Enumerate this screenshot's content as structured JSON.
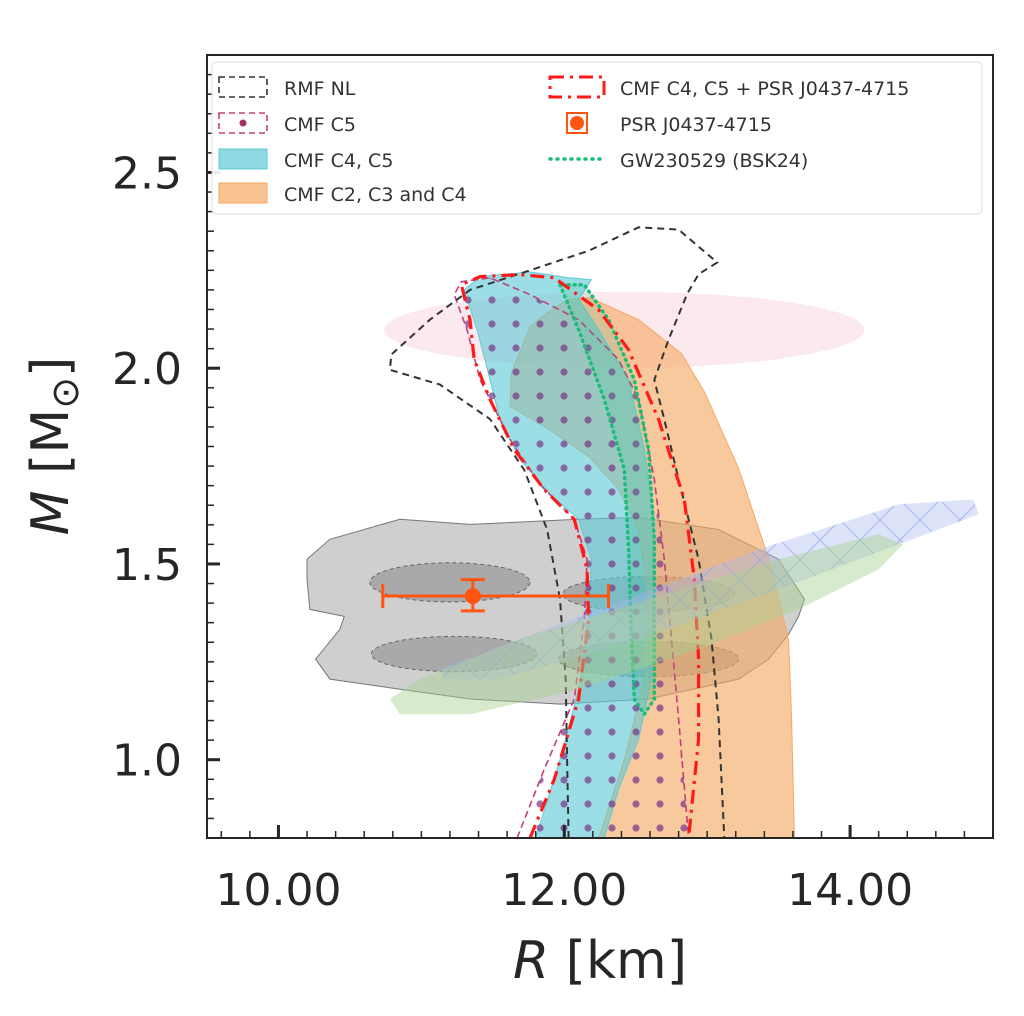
{
  "chart_data": {
    "type": "contour-region",
    "xlabel_italic": "R",
    "xlabel_unit": " [km]",
    "ylabel_italic": "M",
    "ylabel_unit": " [M",
    "ylabel_sub": "⊙",
    "ylabel_close": "]",
    "xlim": [
      9.5,
      15.0
    ],
    "ylim": [
      0.8,
      2.8
    ],
    "xticks": [
      {
        "v": 10,
        "label": "10.00"
      },
      {
        "v": 12,
        "label": "12.00"
      },
      {
        "v": 14,
        "label": "14.00"
      }
    ],
    "yticks": [
      {
        "v": 1.0,
        "label": "1.0"
      },
      {
        "v": 1.5,
        "label": "1.5"
      },
      {
        "v": 2.0,
        "label": "2.0"
      },
      {
        "v": 2.5,
        "label": "2.5"
      }
    ],
    "x_minor_step": 0.2,
    "y_minor_step": 0.05,
    "legend": {
      "placement": "top",
      "left": [
        {
          "label": "RMF NL",
          "style": "dashed",
          "color": "#333333"
        },
        {
          "label": "CMF C5",
          "style": "dashed-dots",
          "color": "#c0407a"
        },
        {
          "label": "CMF C4, C5",
          "style": "fill",
          "color": "#5fcad6"
        },
        {
          "label": "CMF C2, C3 and C4",
          "style": "fill",
          "color": "#f6a862"
        }
      ],
      "right": [
        {
          "label": "CMF C4, C5 + PSR J0437-4715",
          "style": "dashdot",
          "color": "#ff1a1a"
        },
        {
          "label": "PSR J0437-4715",
          "style": "errorbar",
          "color": "#ff5511"
        },
        {
          "label": "GW230529 (BSK24)",
          "style": "dotted",
          "color": "#1abc7a"
        }
      ]
    },
    "background_regions": {
      "pink_ellipse": {
        "center": [
          12.42,
          2.098
        ],
        "half_width": 1.68,
        "half_height": 0.097,
        "color": "#f4c0cf"
      },
      "blue_hatched": {
        "color": "#a9b9ef",
        "points": [
          [
            11.13,
            1.231
          ],
          [
            12.24,
            1.384
          ],
          [
            13.36,
            1.537
          ],
          [
            14.34,
            1.652
          ],
          [
            14.86,
            1.665
          ],
          [
            14.9,
            1.627
          ],
          [
            14.34,
            1.55
          ],
          [
            13.5,
            1.435
          ],
          [
            12.52,
            1.308
          ],
          [
            11.55,
            1.206
          ],
          [
            11.16,
            1.206
          ]
        ]
      },
      "green_band": {
        "color": "#a8d08d",
        "points": [
          [
            10.78,
            1.155
          ],
          [
            10.99,
            1.206
          ],
          [
            11.69,
            1.308
          ],
          [
            12.59,
            1.41
          ],
          [
            13.5,
            1.512
          ],
          [
            14.2,
            1.576
          ],
          [
            14.37,
            1.55
          ],
          [
            14.2,
            1.486
          ],
          [
            13.64,
            1.384
          ],
          [
            12.94,
            1.282
          ],
          [
            12.1,
            1.18
          ],
          [
            11.34,
            1.116
          ],
          [
            10.85,
            1.116
          ]
        ]
      },
      "gray_outer": {
        "color": "#8c8c8c",
        "points": [
          [
            10.2,
            1.512
          ],
          [
            10.36,
            1.563
          ],
          [
            10.85,
            1.614
          ],
          [
            11.34,
            1.601
          ],
          [
            12.1,
            1.614
          ],
          [
            12.52,
            1.619
          ],
          [
            13.08,
            1.588
          ],
          [
            13.5,
            1.512
          ],
          [
            13.68,
            1.41
          ],
          [
            13.64,
            1.366
          ],
          [
            13.57,
            1.32
          ],
          [
            13.43,
            1.257
          ],
          [
            13.22,
            1.206
          ],
          [
            12.59,
            1.155
          ],
          [
            11.97,
            1.142
          ],
          [
            11.34,
            1.155
          ],
          [
            10.85,
            1.18
          ],
          [
            10.36,
            1.206
          ],
          [
            10.26,
            1.257
          ],
          [
            10.43,
            1.333
          ],
          [
            10.46,
            1.366
          ],
          [
            10.22,
            1.384
          ],
          [
            10.2,
            1.461
          ]
        ]
      },
      "gray_inner": [
        {
          "center": [
            11.2,
            1.453
          ],
          "half_width": 0.56,
          "half_height": 0.05
        },
        {
          "center": [
            11.23,
            1.27
          ],
          "half_width": 0.58,
          "half_height": 0.045
        },
        {
          "center": [
            12.59,
            1.423
          ],
          "half_width": 0.6,
          "half_height": 0.045
        },
        {
          "center": [
            12.59,
            1.257
          ],
          "half_width": 0.63,
          "half_height": 0.045
        }
      ]
    },
    "series": [
      {
        "name": "CMF C2, C3 and C4",
        "kind": "fill",
        "color": "#f6a862",
        "points": [
          [
            12.24,
            0.8
          ],
          [
            12.42,
            1.0
          ],
          [
            12.56,
            1.206
          ],
          [
            12.59,
            1.41
          ],
          [
            12.52,
            1.588
          ],
          [
            12.38,
            1.69
          ],
          [
            12.17,
            1.775
          ],
          [
            11.86,
            1.851
          ],
          [
            11.62,
            1.902
          ],
          [
            11.63,
            1.989
          ],
          [
            11.76,
            2.106
          ],
          [
            11.89,
            2.144
          ],
          [
            12.02,
            2.175
          ],
          [
            12.18,
            2.18
          ],
          [
            12.52,
            2.124
          ],
          [
            12.82,
            2.037
          ],
          [
            12.98,
            1.94
          ],
          [
            13.22,
            1.744
          ],
          [
            13.44,
            1.502
          ],
          [
            13.57,
            1.305
          ],
          [
            13.59,
            1.111
          ],
          [
            13.61,
            0.8
          ]
        ]
      },
      {
        "name": "CMF C4, C5",
        "kind": "fill",
        "color": "#5fcad6",
        "points": [
          [
            11.8,
            0.8
          ],
          [
            11.97,
            1.0
          ],
          [
            12.1,
            1.18
          ],
          [
            12.17,
            1.359
          ],
          [
            12.19,
            1.512
          ],
          [
            12.1,
            1.614
          ],
          [
            11.9,
            1.678
          ],
          [
            11.69,
            1.767
          ],
          [
            11.55,
            1.869
          ],
          [
            11.48,
            1.971
          ],
          [
            11.39,
            2.098
          ],
          [
            11.3,
            2.2
          ],
          [
            11.41,
            2.234
          ],
          [
            11.76,
            2.246
          ],
          [
            12.03,
            2.231
          ],
          [
            12.19,
            2.226
          ],
          [
            12.1,
            2.175
          ],
          [
            12.24,
            2.098
          ],
          [
            12.45,
            1.971
          ],
          [
            12.56,
            1.792
          ],
          [
            12.63,
            1.614
          ],
          [
            12.63,
            1.41
          ],
          [
            12.61,
            1.206
          ],
          [
            12.52,
            1.053
          ],
          [
            12.38,
            0.925
          ],
          [
            12.28,
            0.8
          ]
        ]
      },
      {
        "name": "CMF C5",
        "kind": "dashed-dots",
        "color": "#c0407a",
        "points": [
          [
            11.67,
            0.8
          ],
          [
            11.86,
            0.976
          ],
          [
            12.07,
            1.155
          ],
          [
            12.14,
            1.359
          ],
          [
            12.16,
            1.512
          ],
          [
            12.07,
            1.614
          ],
          [
            11.83,
            1.703
          ],
          [
            11.62,
            1.818
          ],
          [
            11.41,
            1.971
          ],
          [
            11.32,
            2.098
          ],
          [
            11.23,
            2.188
          ],
          [
            11.28,
            2.221
          ],
          [
            11.48,
            2.231
          ],
          [
            11.76,
            2.188
          ],
          [
            12.1,
            2.124
          ],
          [
            12.38,
            2.022
          ],
          [
            12.52,
            1.92
          ],
          [
            12.63,
            1.716
          ],
          [
            12.7,
            1.512
          ],
          [
            12.75,
            1.308
          ],
          [
            12.8,
            1.104
          ],
          [
            12.87,
            0.8
          ]
        ]
      },
      {
        "name": "RMF NL",
        "kind": "dashed",
        "color": "#333333",
        "points": [
          [
            12.03,
            0.8
          ],
          [
            12.02,
            1.0
          ],
          [
            12.01,
            1.206
          ],
          [
            11.97,
            1.41
          ],
          [
            11.88,
            1.588
          ],
          [
            11.72,
            1.74
          ],
          [
            11.48,
            1.87
          ],
          [
            11.13,
            1.958
          ],
          [
            10.78,
            1.996
          ],
          [
            10.79,
            2.035
          ],
          [
            11.06,
            2.124
          ],
          [
            11.34,
            2.2
          ],
          [
            11.76,
            2.25
          ],
          [
            12.17,
            2.3
          ],
          [
            12.52,
            2.36
          ],
          [
            12.8,
            2.354
          ],
          [
            13.07,
            2.27
          ],
          [
            12.94,
            2.24
          ],
          [
            12.86,
            2.19
          ],
          [
            12.73,
            2.073
          ],
          [
            12.63,
            1.97
          ],
          [
            12.7,
            1.869
          ],
          [
            12.8,
            1.716
          ],
          [
            12.94,
            1.512
          ],
          [
            13.03,
            1.308
          ],
          [
            13.08,
            1.104
          ],
          [
            13.12,
            0.8
          ]
        ]
      },
      {
        "name": "GW230529 (BSK24)",
        "kind": "dotted",
        "color": "#1abc7a",
        "points": [
          [
            11.97,
            2.213
          ],
          [
            12.1,
            2.098
          ],
          [
            12.28,
            1.92
          ],
          [
            12.42,
            1.741
          ],
          [
            12.45,
            1.537
          ],
          [
            12.47,
            1.308
          ],
          [
            12.49,
            1.155
          ],
          [
            12.56,
            1.116
          ],
          [
            12.63,
            1.155
          ],
          [
            12.63,
            1.359
          ],
          [
            12.63,
            1.563
          ],
          [
            12.59,
            1.792
          ],
          [
            12.49,
            1.971
          ],
          [
            12.31,
            2.124
          ],
          [
            12.14,
            2.213
          ]
        ]
      },
      {
        "name": "CMF C4, C5 + PSR J0437-4715",
        "kind": "dashdot",
        "color": "#ff1a1a",
        "points": [
          [
            11.76,
            0.8
          ],
          [
            11.93,
            0.95
          ],
          [
            12.1,
            1.155
          ],
          [
            12.17,
            1.359
          ],
          [
            12.16,
            1.486
          ],
          [
            12.07,
            1.614
          ],
          [
            11.86,
            1.69
          ],
          [
            11.65,
            1.792
          ],
          [
            11.48,
            1.92
          ],
          [
            11.37,
            2.022
          ],
          [
            11.34,
            2.124
          ],
          [
            11.28,
            2.213
          ],
          [
            11.41,
            2.234
          ],
          [
            11.69,
            2.239
          ],
          [
            11.93,
            2.231
          ],
          [
            12.24,
            2.149
          ],
          [
            12.45,
            2.047
          ],
          [
            12.66,
            1.869
          ],
          [
            12.84,
            1.665
          ],
          [
            12.91,
            1.461
          ],
          [
            12.94,
            1.257
          ],
          [
            12.94,
            1.053
          ],
          [
            12.87,
            0.8
          ]
        ]
      }
    ],
    "psr_point": {
      "name": "PSR J0437-4715",
      "R": 11.36,
      "M": 1.418,
      "R_err": [
        10.73,
        12.31
      ],
      "M_err": [
        1.38,
        1.46
      ],
      "color": "#ff5511"
    }
  }
}
